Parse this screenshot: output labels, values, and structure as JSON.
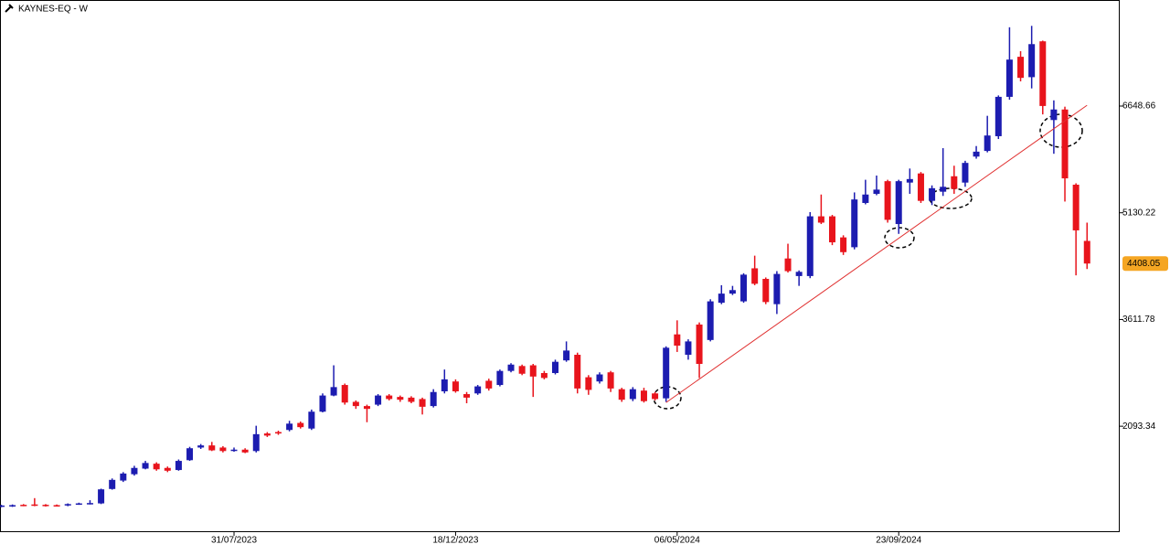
{
  "chart_data": {
    "type": "candlestick",
    "title": "KAYNES-EQ - W",
    "categories": [
      null,
      null,
      null,
      null,
      null,
      null,
      null,
      null,
      null,
      null,
      null,
      null,
      null,
      null,
      null,
      null,
      null,
      null,
      null,
      null,
      null,
      "31/07/2023",
      null,
      null,
      null,
      null,
      null,
      null,
      null,
      null,
      null,
      null,
      null,
      null,
      null,
      null,
      null,
      null,
      null,
      null,
      null,
      "18/12/2023",
      null,
      null,
      null,
      null,
      null,
      null,
      null,
      null,
      null,
      null,
      null,
      null,
      null,
      null,
      null,
      null,
      null,
      null,
      null,
      "06/05/2024",
      null,
      null,
      null,
      null,
      null,
      null,
      null,
      null,
      null,
      null,
      null,
      null,
      null,
      null,
      null,
      null,
      null,
      null,
      null,
      "23/09/2024",
      null,
      null,
      null,
      null,
      null,
      null,
      null,
      null,
      null,
      null,
      null,
      null,
      null,
      null,
      null,
      null,
      null
    ],
    "candles": {
      "open": [
        950,
        955,
        975,
        980,
        975,
        970,
        965,
        985,
        990,
        995,
        1200,
        1320,
        1410,
        1490,
        1560,
        1500,
        1470,
        1610,
        1790,
        1820,
        1790,
        1750,
        1760,
        1740,
        1990,
        2010,
        2040,
        2140,
        2060,
        2300,
        2530,
        2680,
        2440,
        2380,
        2400,
        2530,
        2510,
        2500,
        2480,
        2380,
        2590,
        2730,
        2550,
        2560,
        2740,
        2680,
        2880,
        2950,
        2960,
        2850,
        2850,
        3030,
        3110,
        2790,
        2730,
        2860,
        2620,
        2480,
        2600,
        2560,
        2490,
        3400,
        3110,
        3540,
        3320,
        3850,
        3980,
        3870,
        4340,
        4190,
        3830,
        4480,
        4230,
        4230,
        5080,
        5080,
        4780,
        4640,
        5270,
        5400,
        5580,
        4970,
        5560,
        5690,
        5300,
        5430,
        5650,
        5560,
        5930,
        6010,
        6220,
        6780,
        7350,
        7060,
        7570,
        6450,
        6600,
        5530,
        4730
      ],
      "high": [
        975,
        980,
        985,
        1070,
        985,
        980,
        995,
        1005,
        1040,
        1205,
        1350,
        1440,
        1530,
        1600,
        1580,
        1520,
        1620,
        1800,
        1840,
        1870,
        1810,
        1790,
        1780,
        2100,
        2010,
        2030,
        2170,
        2160,
        2330,
        2560,
        2960,
        2700,
        2460,
        2400,
        2550,
        2550,
        2530,
        2520,
        2500,
        2620,
        2900,
        2760,
        2580,
        2680,
        2770,
        2900,
        2990,
        2970,
        2980,
        2880,
        3040,
        3300,
        3140,
        2820,
        2860,
        2880,
        2640,
        2650,
        2640,
        2580,
        3230,
        3600,
        3330,
        3570,
        3900,
        4100,
        4090,
        4270,
        4520,
        4210,
        4300,
        4690,
        4310,
        5140,
        5390,
        5100,
        4810,
        5420,
        5600,
        5660,
        5600,
        5600,
        5760,
        5710,
        5520,
        6050,
        5800,
        5870,
        6080,
        6510,
        6800,
        7770,
        7430,
        7790,
        7580,
        6730,
        6640,
        5550,
        4990
      ],
      "low": [
        940,
        945,
        955,
        955,
        950,
        950,
        955,
        975,
        980,
        985,
        1190,
        1300,
        1390,
        1480,
        1460,
        1440,
        1460,
        1600,
        1770,
        1740,
        1720,
        1730,
        1710,
        1720,
        1940,
        1970,
        2020,
        2060,
        2040,
        2290,
        2520,
        2400,
        2340,
        2150,
        2380,
        2460,
        2440,
        2420,
        2260,
        2360,
        2560,
        2570,
        2420,
        2540,
        2600,
        2660,
        2860,
        2820,
        2510,
        2760,
        2830,
        3010,
        2560,
        2540,
        2700,
        2580,
        2440,
        2450,
        2430,
        2460,
        2440,
        3150,
        3040,
        2780,
        3300,
        3830,
        3960,
        3850,
        4100,
        3830,
        3690,
        4280,
        4090,
        4200,
        4970,
        4670,
        4530,
        4610,
        5250,
        5380,
        4990,
        4830,
        5400,
        5270,
        5240,
        5370,
        5400,
        5500,
        5900,
        5990,
        6180,
        6740,
        7000,
        6900,
        6530,
        5970,
        5290,
        4240,
        4330
      ],
      "close": [
        965,
        970,
        965,
        965,
        960,
        960,
        985,
        995,
        1000,
        1195,
        1330,
        1420,
        1500,
        1570,
        1480,
        1460,
        1600,
        1780,
        1820,
        1750,
        1740,
        1760,
        1720,
        1980,
        1960,
        1990,
        2130,
        2080,
        2300,
        2530,
        2650,
        2430,
        2380,
        2340,
        2530,
        2480,
        2470,
        2440,
        2370,
        2580,
        2760,
        2590,
        2500,
        2660,
        2630,
        2880,
        2970,
        2840,
        2800,
        2780,
        3010,
        3170,
        2630,
        2610,
        2830,
        2630,
        2470,
        2620,
        2450,
        2480,
        3210,
        3240,
        3300,
        2980,
        3870,
        3980,
        4030,
        4250,
        4120,
        3860,
        4260,
        4300,
        4290,
        5080,
        4990,
        4710,
        4570,
        5320,
        5390,
        5460,
        5030,
        5580,
        5610,
        5300,
        5480,
        5500,
        5470,
        5840,
        6000,
        6230,
        6780,
        7310,
        7050,
        7530,
        6650,
        6600,
        5620,
        4880,
        4408.05
      ]
    },
    "up_color": "#1c1cb0",
    "down_color": "#e8141c",
    "last_color": "#f5a623",
    "trendline": {
      "start": [
        60,
        2430
      ],
      "end": [
        98,
        6660
      ],
      "color": "#e03030"
    },
    "ylim": [
      586,
      8158
    ],
    "yticks": [
      2093.34,
      3611.78,
      5130.22,
      6648.66
    ]
  }
}
